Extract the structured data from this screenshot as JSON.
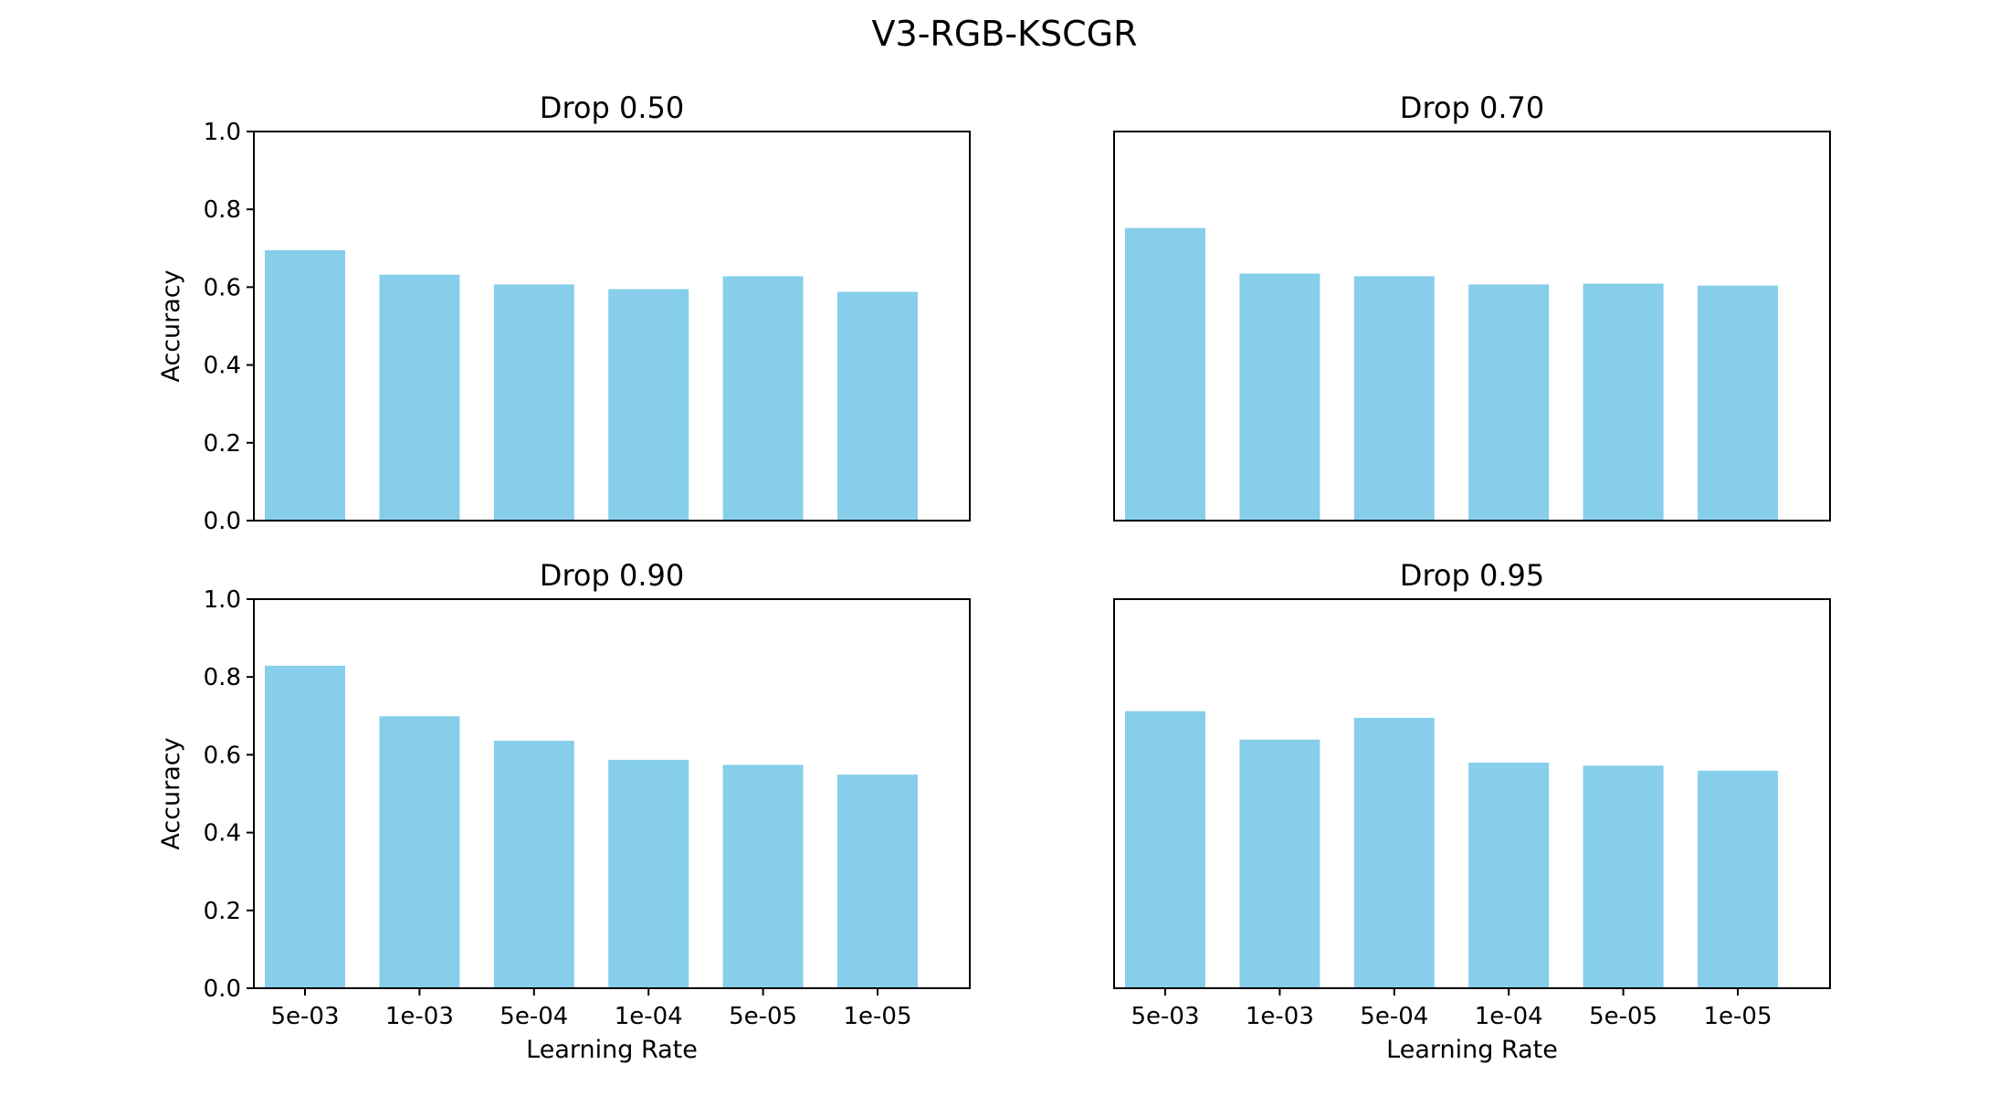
{
  "colors": {
    "bar": "#87ceeb",
    "axis": "#000000",
    "background": "#ffffff"
  },
  "figure_title": "V3-RGB-KSCGR",
  "chart_data": [
    {
      "type": "bar",
      "title": "Drop 0.50",
      "categories": [
        "5e-03",
        "1e-03",
        "5e-04",
        "1e-04",
        "5e-05",
        "1e-05"
      ],
      "values": [
        0.695,
        0.632,
        0.607,
        0.595,
        0.628,
        0.588
      ],
      "xlabel": "",
      "ylabel": "Accuracy",
      "ylim": [
        0,
        1
      ],
      "yticks": [
        "0.0",
        "0.2",
        "0.4",
        "0.6",
        "0.8",
        "1.0"
      ],
      "grid": false
    },
    {
      "type": "bar",
      "title": "Drop 0.70",
      "categories": [
        "5e-03",
        "1e-03",
        "5e-04",
        "1e-04",
        "5e-05",
        "1e-05"
      ],
      "values": [
        0.752,
        0.635,
        0.628,
        0.607,
        0.609,
        0.604
      ],
      "xlabel": "",
      "ylabel": "",
      "ylim": [
        0,
        1
      ],
      "yticks": [],
      "grid": false
    },
    {
      "type": "bar",
      "title": "Drop 0.90",
      "categories": [
        "5e-03",
        "1e-03",
        "5e-04",
        "1e-04",
        "5e-05",
        "1e-05"
      ],
      "values": [
        0.829,
        0.699,
        0.636,
        0.587,
        0.574,
        0.549
      ],
      "xlabel": "Learning Rate",
      "ylabel": "Accuracy",
      "ylim": [
        0,
        1
      ],
      "yticks": [
        "0.0",
        "0.2",
        "0.4",
        "0.6",
        "0.8",
        "1.0"
      ],
      "grid": false
    },
    {
      "type": "bar",
      "title": "Drop 0.95",
      "categories": [
        "5e-03",
        "1e-03",
        "5e-04",
        "1e-04",
        "5e-05",
        "1e-05"
      ],
      "values": [
        0.712,
        0.639,
        0.695,
        0.58,
        0.572,
        0.559
      ],
      "xlabel": "Learning Rate",
      "ylabel": "",
      "ylim": [
        0,
        1
      ],
      "yticks": [],
      "grid": false
    }
  ]
}
